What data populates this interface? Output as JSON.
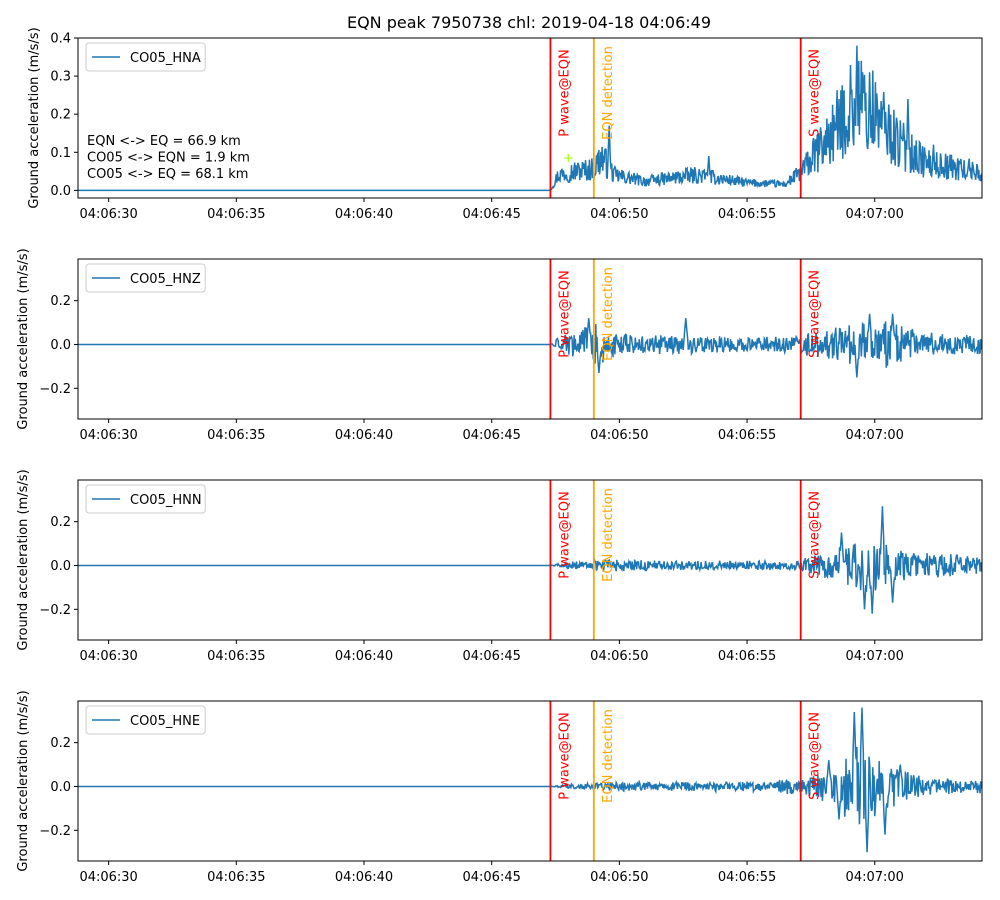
{
  "chart_data": {
    "type": "line",
    "title": "EQN peak 7950738 chl: 2019-04-18 04:06:49",
    "xlabel": "",
    "x_range": [
      "04:06:28.8",
      "04:07:04.2"
    ],
    "x_ticks": [
      "04:06:30",
      "04:06:35",
      "04:06:40",
      "04:06:45",
      "04:06:50",
      "04:06:55",
      "04:07:00"
    ],
    "annotation_lines": [
      {
        "label": "P wave@EQN",
        "time": "04:06:47.3",
        "color": "#ff0000"
      },
      {
        "label": "EQN detection",
        "time": "04:06:49.0",
        "color": "#ffa500"
      },
      {
        "label": "S wave@EQN",
        "time": "04:06:57.1",
        "color": "#ff0000"
      }
    ],
    "series_color": "#1f77b4",
    "pick_marker": {
      "time": "04:06:48.0",
      "value": 0.085,
      "color": "#adff2f",
      "panel": 0
    },
    "panels": [
      {
        "legend": "CO05_HNA",
        "ylabel": "Ground acceleration (m/s/s)",
        "ylim": [
          -0.02,
          0.4
        ],
        "y_ticks": [
          "0.0",
          "0.1",
          "0.2",
          "0.3",
          "0.4"
        ],
        "y_tick_values": [
          0,
          0.1,
          0.2,
          0.3,
          0.4
        ],
        "legend_loc": "upper-left",
        "info_text": [
          "EQN <-> EQ = 66.9 km",
          "CO05 <-> EQN = 1.9 km",
          "CO05 <-> EQ = 68.1 km"
        ],
        "envelope": [
          [
            "04:06:47.3",
            0.0
          ],
          [
            "04:06:47.6",
            0.05
          ],
          [
            "04:06:48.0",
            0.06
          ],
          [
            "04:06:49.0",
            0.07
          ],
          [
            "04:06:49.3",
            0.11
          ],
          [
            "04:06:49.8",
            0.05
          ],
          [
            "04:06:51.0",
            0.03
          ],
          [
            "04:06:53.0",
            0.05
          ],
          [
            "04:06:55.0",
            0.025
          ],
          [
            "04:06:56.5",
            0.02
          ],
          [
            "04:06:57.1",
            0.06
          ],
          [
            "04:06:58.0",
            0.15
          ],
          [
            "04:06:59.3",
            0.3
          ],
          [
            "04:07:00.0",
            0.25
          ],
          [
            "04:07:01.0",
            0.15
          ],
          [
            "04:07:02.0",
            0.09
          ],
          [
            "04:07:04.2",
            0.06
          ]
        ],
        "peaks": [
          [
            "04:06:49.6",
            0.17
          ],
          [
            "04:06:53.5",
            0.09
          ],
          [
            "04:06:58.6",
            0.24
          ],
          [
            "04:06:59.3",
            0.38
          ],
          [
            "04:06:59.8",
            0.31
          ],
          [
            "04:07:01.3",
            0.24
          ],
          [
            "04:07:02.3",
            0.12
          ]
        ]
      },
      {
        "legend": "CO05_HNZ",
        "ylabel": "Ground acceleration (m/s/s)",
        "ylim": [
          -0.34,
          0.39
        ],
        "y_ticks": [
          "−0.2",
          "0.0",
          "0.2"
        ],
        "y_tick_values": [
          -0.2,
          0,
          0.2
        ],
        "legend_loc": "upper-left",
        "envelope": [
          [
            "04:06:47.3",
            0.0
          ],
          [
            "04:06:47.6",
            0.03
          ],
          [
            "04:06:48.3",
            0.06
          ],
          [
            "04:06:49.0",
            0.1
          ],
          [
            "04:06:49.6",
            0.06
          ],
          [
            "04:06:51.0",
            0.04
          ],
          [
            "04:06:53.0",
            0.04
          ],
          [
            "04:06:55.0",
            0.03
          ],
          [
            "04:06:57.0",
            0.04
          ],
          [
            "04:06:59.0",
            0.09
          ],
          [
            "04:07:00.5",
            0.1
          ],
          [
            "04:07:02.0",
            0.05
          ],
          [
            "04:07:04.2",
            0.04
          ]
        ],
        "peaks": [
          [
            "04:06:48.8",
            0.12
          ],
          [
            "04:06:49.2",
            -0.13
          ],
          [
            "04:06:52.6",
            0.12
          ],
          [
            "04:06:59.8",
            0.14
          ],
          [
            "04:07:00.7",
            0.14
          ],
          [
            "04:06:59.3",
            -0.15
          ]
        ]
      },
      {
        "legend": "CO05_HNN",
        "ylabel": "Ground acceleration (m/s/s)",
        "ylim": [
          -0.34,
          0.39
        ],
        "y_ticks": [
          "−0.2",
          "0.0",
          "0.2"
        ],
        "y_tick_values": [
          -0.2,
          0,
          0.2
        ],
        "legend_loc": "upper-left",
        "envelope": [
          [
            "04:06:47.3",
            0.0
          ],
          [
            "04:06:48.0",
            0.015
          ],
          [
            "04:06:49.5",
            0.03
          ],
          [
            "04:06:52.0",
            0.02
          ],
          [
            "04:06:55.0",
            0.02
          ],
          [
            "04:06:57.0",
            0.02
          ],
          [
            "04:06:58.0",
            0.06
          ],
          [
            "04:06:59.5",
            0.12
          ],
          [
            "04:07:00.5",
            0.1
          ],
          [
            "04:07:01.5",
            0.06
          ],
          [
            "04:07:04.2",
            0.04
          ]
        ],
        "peaks": [
          [
            "04:06:58.7",
            0.15
          ],
          [
            "04:06:59.6",
            -0.2
          ],
          [
            "04:06:59.9",
            -0.22
          ],
          [
            "04:07:00.3",
            0.27
          ],
          [
            "04:07:00.7",
            -0.17
          ]
        ]
      },
      {
        "legend": "CO05_HNE",
        "ylabel": "Ground acceleration (m/s/s)",
        "ylim": [
          -0.34,
          0.39
        ],
        "y_ticks": [
          "−0.2",
          "0.0",
          "0.2"
        ],
        "y_tick_values": [
          -0.2,
          0,
          0.2
        ],
        "legend_loc": "upper-left",
        "envelope": [
          [
            "04:06:47.3",
            0.0
          ],
          [
            "04:06:48.0",
            0.01
          ],
          [
            "04:06:50.0",
            0.02
          ],
          [
            "04:06:53.0",
            0.02
          ],
          [
            "04:06:56.0",
            0.025
          ],
          [
            "04:06:57.0",
            0.04
          ],
          [
            "04:06:58.5",
            0.08
          ],
          [
            "04:06:59.3",
            0.2
          ],
          [
            "04:07:00.0",
            0.15
          ],
          [
            "04:07:01.0",
            0.08
          ],
          [
            "04:07:02.0",
            0.04
          ],
          [
            "04:07:04.2",
            0.03
          ]
        ],
        "peaks": [
          [
            "04:06:58.2",
            0.12
          ],
          [
            "04:06:58.6",
            -0.15
          ],
          [
            "04:06:59.2",
            0.34
          ],
          [
            "04:06:59.5",
            0.36
          ],
          [
            "04:06:59.7",
            -0.3
          ],
          [
            "04:07:00.4",
            -0.22
          ],
          [
            "04:07:01.0",
            0.1
          ]
        ]
      }
    ]
  }
}
